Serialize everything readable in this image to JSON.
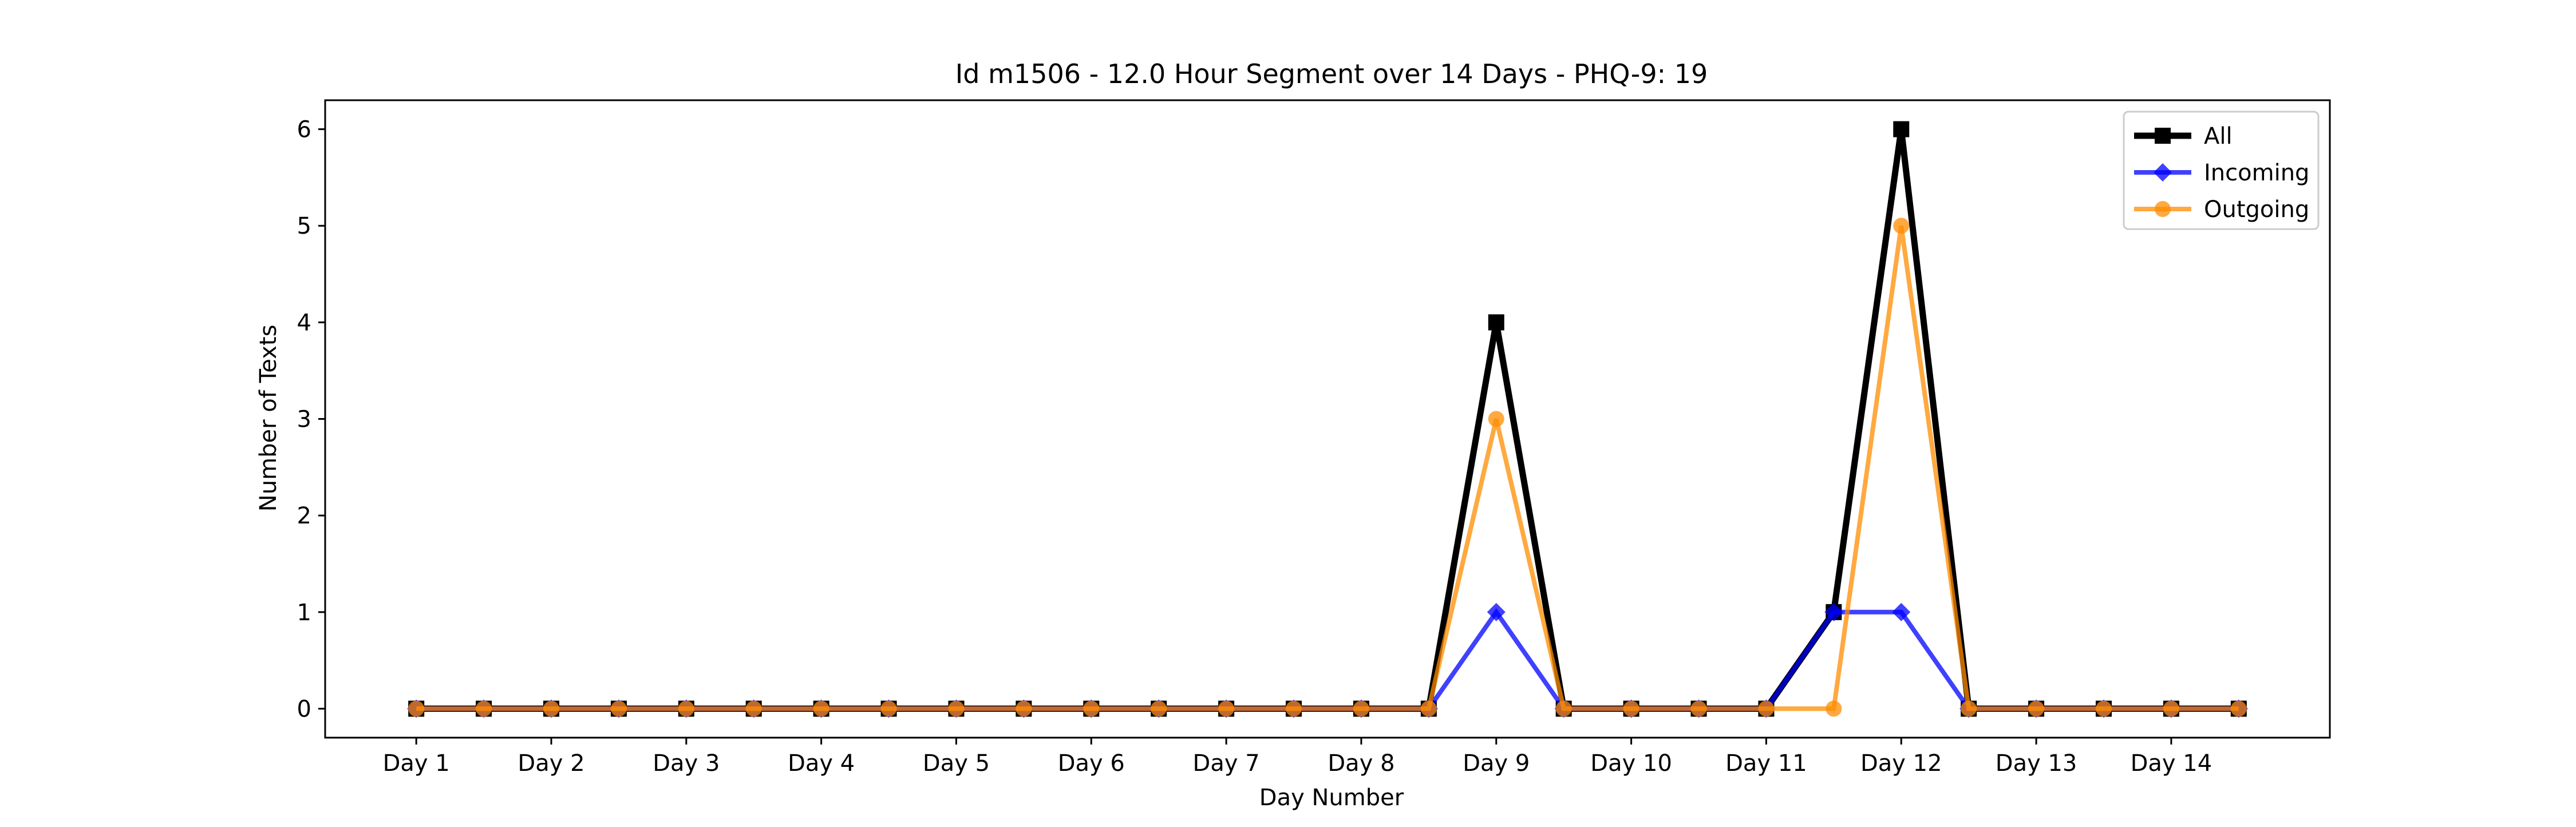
{
  "chart_data": {
    "type": "line",
    "title": "Id m1506 - 12.0 Hour Segment over 14 Days - PHQ-9: 19",
    "xlabel": "Day Number",
    "ylabel": "Number of Texts",
    "ylim": [
      -0.3,
      6.3
    ],
    "yticks": [
      0,
      1,
      2,
      3,
      4,
      5,
      6
    ],
    "xticklabels": [
      "Day 1",
      "Day 2",
      "Day 3",
      "Day 4",
      "Day 5",
      "Day 6",
      "Day 7",
      "Day 8",
      "Day 9",
      "Day 10",
      "Day 11",
      "Day 12",
      "Day 13",
      "Day 14"
    ],
    "grid": false,
    "legend_position": "top-right",
    "series": [
      {
        "name": "All",
        "color": "#000000",
        "marker": "square",
        "values": [
          0,
          0,
          0,
          0,
          0,
          0,
          0,
          0,
          0,
          0,
          0,
          0,
          0,
          0,
          0,
          0,
          4,
          0,
          0,
          0,
          0,
          1,
          6,
          0,
          0,
          0,
          0,
          0
        ]
      },
      {
        "name": "Incoming",
        "color": "#0000ff",
        "marker": "diamond",
        "values": [
          0,
          0,
          0,
          0,
          0,
          0,
          0,
          0,
          0,
          0,
          0,
          0,
          0,
          0,
          0,
          0,
          1,
          0,
          0,
          0,
          0,
          1,
          1,
          0,
          0,
          0,
          0,
          0
        ]
      },
      {
        "name": "Outgoing",
        "color": "#ff8c00",
        "marker": "circle",
        "values": [
          0,
          0,
          0,
          0,
          0,
          0,
          0,
          0,
          0,
          0,
          0,
          0,
          0,
          0,
          0,
          0,
          3,
          0,
          0,
          0,
          0,
          0,
          5,
          0,
          0,
          0,
          0,
          0
        ]
      }
    ]
  }
}
